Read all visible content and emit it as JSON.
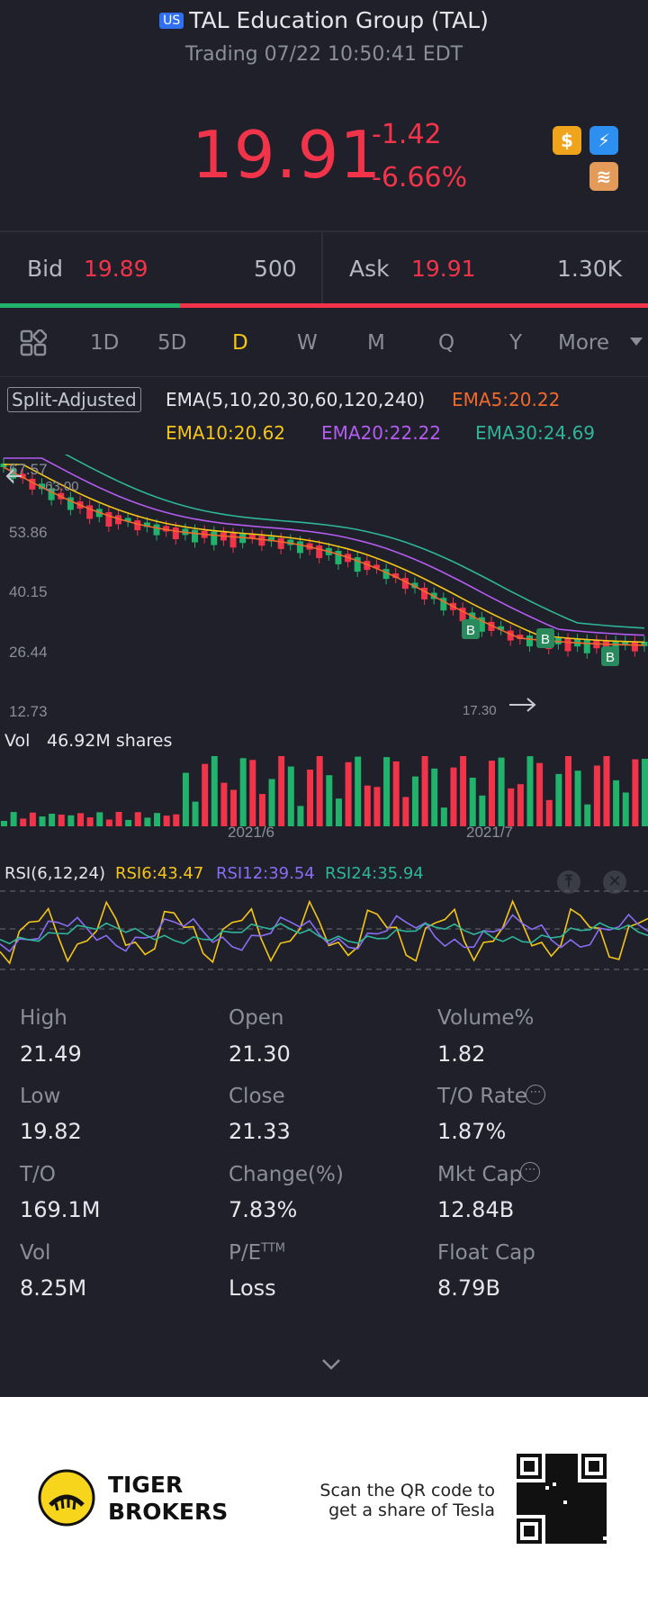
{
  "header": {
    "market_badge": "US",
    "title": "TAL Education Group (TAL)",
    "trading_status": "Trading 07/22 10:50:41 EDT",
    "price": "19.91",
    "change": "-1.42",
    "change_pct": "-6.66%"
  },
  "quote": {
    "bid_label": "Bid",
    "bid_price": "19.89",
    "bid_size": "500",
    "ask_label": "Ask",
    "ask_price": "19.91",
    "ask_size": "1.30K"
  },
  "tabs": [
    "1D",
    "5D",
    "D",
    "W",
    "M",
    "Q",
    "Y",
    "More"
  ],
  "active_tab": "D",
  "indicators": {
    "split_label": "Split-Adjusted",
    "ema_label": "EMA(5,10,20,30,60,120,240)",
    "ema5": "EMA5:20.22",
    "ema10": "EMA10:20.62",
    "ema20": "EMA20:22.22",
    "ema30": "EMA30:24.69"
  },
  "price_chart": {
    "y_ticks": [
      "67.57",
      "53.86",
      "40.15",
      "26.44",
      "12.73"
    ],
    "high_marker": "63.00",
    "low_marker": "17.30",
    "buy_marker": "B"
  },
  "volume": {
    "label": "Vol",
    "value": "46.92M shares",
    "x_ticks": [
      "2021/6",
      "2021/7"
    ]
  },
  "rsi": {
    "label": "RSI(6,12,24)",
    "rsi6": "RSI6:43.47",
    "rsi12": "RSI12:39.54",
    "rsi24": "RSI24:35.94"
  },
  "stats": [
    {
      "label": "High",
      "value": "21.49"
    },
    {
      "label": "Open",
      "value": "21.30"
    },
    {
      "label": "Volume%",
      "value": "1.82"
    },
    {
      "label": "Low",
      "value": "19.82"
    },
    {
      "label": "Close",
      "value": "21.33"
    },
    {
      "label": "T/O Rate",
      "value": "1.87%"
    },
    {
      "label": "T/O",
      "value": "169.1M"
    },
    {
      "label": "Change(%)",
      "value": "7.83%"
    },
    {
      "label": "Mkt Cap",
      "value": "12.84B"
    },
    {
      "label": "Vol",
      "value": "8.25M"
    },
    {
      "label": "P/E",
      "value": "Loss"
    },
    {
      "label": "Float Cap",
      "value": "8.79B"
    }
  ],
  "pe_superscript": "TTM",
  "footer": {
    "brand_line1": "TIGER",
    "brand_line2": "BROKERS",
    "scan_line1": "Scan the QR code to",
    "scan_line2": "get a share of Tesla"
  },
  "colors": {
    "up": "#21b36b",
    "down": "#f2344a",
    "ema5": "#f06a2c",
    "ema10": "#f5c518",
    "ema20": "#b45cf0",
    "ema30": "#2fb59a",
    "rsi6": "#f5c518",
    "rsi12": "#8a6df5",
    "rsi24": "#2fb59a"
  }
}
